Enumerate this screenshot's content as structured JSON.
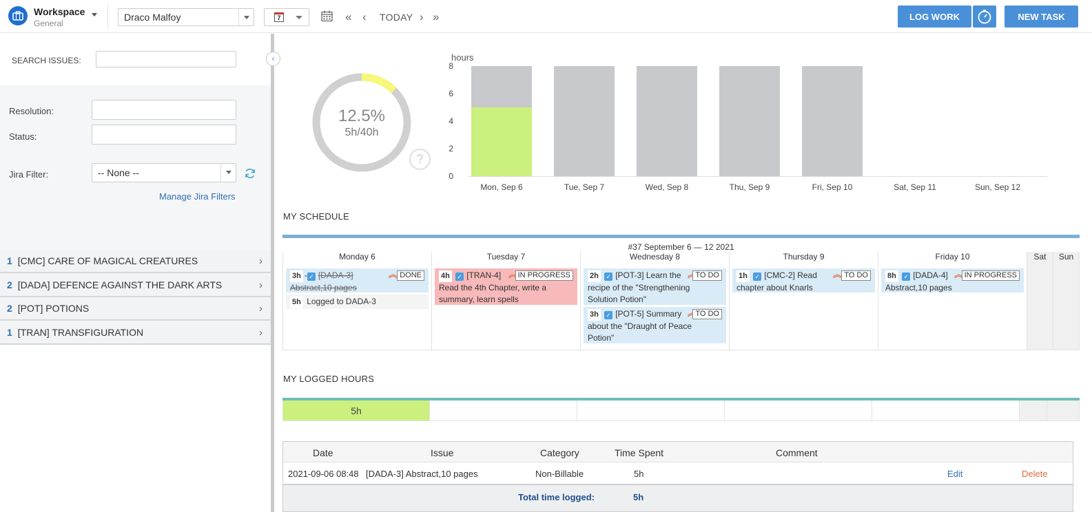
{
  "header": {
    "workspace_title": "Workspace",
    "workspace_sub": "General",
    "user": "Draco Malfoy",
    "range_icon_day": "7",
    "today": "TODAY",
    "log_work": "LOG WORK",
    "new_task": "NEW TASK"
  },
  "sidebar": {
    "search_label": "SEARCH ISSUES:",
    "resolution_label": "Resolution:",
    "status_label": "Status:",
    "jira_filter_label": "Jira Filter:",
    "jira_filter_value": "-- None --",
    "manage_filters": "Manage Jira Filters",
    "projects": [
      {
        "count": "1",
        "name": "[CMC] CARE OF MAGICAL CREATURES"
      },
      {
        "count": "2",
        "name": "[DADA] DEFENCE AGAINST THE DARK ARTS"
      },
      {
        "count": "2",
        "name": "[POT] POTIONS"
      },
      {
        "count": "1",
        "name": "[TRAN] TRANSFIGURATION"
      }
    ]
  },
  "donut": {
    "percent_label": "12.5%",
    "ratio_label": "5h/40h",
    "percent": 12.5,
    "help": "?"
  },
  "chart_data": {
    "type": "bar",
    "ylabel": "hours",
    "ylim": [
      0,
      8
    ],
    "yticks": [
      "0",
      "2",
      "4",
      "6",
      "8"
    ],
    "categories": [
      "Mon, Sep 6",
      "Tue, Sep 7",
      "Wed, Sep 8",
      "Thu, Sep 9",
      "Fri, Sep 10",
      "Sat, Sep 11",
      "Sun, Sep 12"
    ],
    "series": [
      {
        "values": [
          5,
          0,
          0,
          0,
          0,
          0,
          0
        ],
        "color": "#ccf07d"
      },
      {
        "values": [
          3,
          8,
          8,
          8,
          8,
          0,
          0
        ],
        "color": "#c8c9cc"
      }
    ]
  },
  "schedule": {
    "title": "MY SCHEDULE",
    "week_label": "#37 September 6 — 12 2021",
    "days": [
      "Monday 6",
      "Tuesday 7",
      "Wednesday 8",
      "Thursday 9",
      "Friday 10",
      "Sat",
      "Sun"
    ],
    "mon_card1_hours": "3h",
    "mon_card1_key": "[DADA-3]",
    "mon_card1_text": "Abstract,10 pages",
    "mon_card1_status": "DONE",
    "mon_card2_hours": "5h",
    "mon_card2_text": "Logged to DADA-3",
    "tue_hours": "4h",
    "tue_key": "[TRAN-4]",
    "tue_status": "IN PROGRESS",
    "tue_text": "Read the 4th Chapter, write a summary, learn spells",
    "wed1_hours": "2h",
    "wed1_text1": "[POT-3] Learn the",
    "wed1_text2": "recipe of the \"Strengthening Solution Potion\"",
    "wed1_status": "TO DO",
    "wed2_hours": "3h",
    "wed2_text1": "[POT-5] Summary",
    "wed2_text2": "about the \"Draught of Peace Potion\"",
    "wed2_status": "TO DO",
    "thu_hours": "1h",
    "thu_text1": "[CMC-2] Read",
    "thu_text2": "chapter about Knarls",
    "thu_status": "TO DO",
    "fri_hours": "8h",
    "fri_text1": "[DADA-4]",
    "fri_text2": "Abstract,10 pages",
    "fri_status": "IN PROGRESS"
  },
  "logged": {
    "title": "MY LOGGED HOURS",
    "mon_value": "5h"
  },
  "worklog": {
    "headers": [
      "Date",
      "Issue",
      "Category",
      "Time Spent",
      "Comment"
    ],
    "row": {
      "date": "2021-09-06 08:48",
      "issue": "[DADA-3] Abstract,10 pages",
      "category": "Non-Billable",
      "time": "5h",
      "edit": "Edit",
      "delete": "Delete"
    },
    "total_label": "Total time logged:",
    "total_value": "5h"
  },
  "colors": {
    "accent": "#4a90d9",
    "logged_green": "#ccf07d",
    "planned_gray": "#c8c9cc",
    "donut_yellow": "#f7f77a",
    "in_progress_red": "#f7b9b9",
    "delete_red": "#e56a3f"
  }
}
